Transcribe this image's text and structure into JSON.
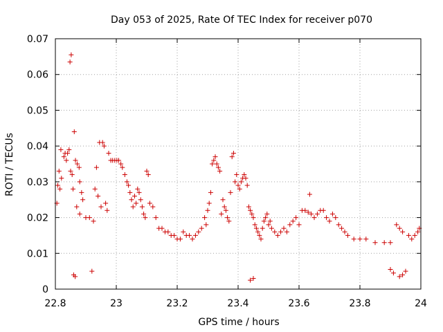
{
  "chart_data": {
    "type": "scatter",
    "title": "Day 053 of 2025, Rate Of TEC Index for receiver p070",
    "xlabel": "GPS time / hours",
    "ylabel": "ROTI / TECUs",
    "xlim": [
      22.8,
      24
    ],
    "ylim": [
      0,
      0.07
    ],
    "x_ticks": [
      22.8,
      23,
      23.2,
      23.4,
      23.6,
      23.8,
      24
    ],
    "x_tick_labels": [
      "22.8",
      "23",
      "23.2",
      "23.4",
      "23.6",
      "23.8",
      "24"
    ],
    "y_ticks": [
      0,
      0.01,
      0.02,
      0.03,
      0.04,
      0.05,
      0.06,
      0.07
    ],
    "y_tick_labels": [
      "0",
      "0.01",
      "0.02",
      "0.03",
      "0.04",
      "0.05",
      "0.06",
      "0.07"
    ],
    "grid": true,
    "marker": "plus",
    "color": "#cc0000",
    "series": [
      {
        "name": "ROTI",
        "points": [
          [
            22.805,
            0.024
          ],
          [
            22.808,
            0.029
          ],
          [
            22.812,
            0.033
          ],
          [
            22.815,
            0.028
          ],
          [
            22.818,
            0.039
          ],
          [
            22.82,
            0.031
          ],
          [
            22.828,
            0.037
          ],
          [
            22.832,
            0.038
          ],
          [
            22.836,
            0.036
          ],
          [
            22.84,
            0.038
          ],
          [
            22.845,
            0.039
          ],
          [
            22.848,
            0.0635
          ],
          [
            22.852,
            0.0655
          ],
          [
            22.85,
            0.033
          ],
          [
            22.855,
            0.032
          ],
          [
            22.858,
            0.028
          ],
          [
            22.862,
            0.044
          ],
          [
            22.866,
            0.036
          ],
          [
            22.872,
            0.035
          ],
          [
            22.878,
            0.034
          ],
          [
            22.88,
            0.03
          ],
          [
            22.886,
            0.027
          ],
          [
            22.89,
            0.025
          ],
          [
            22.88,
            0.021
          ],
          [
            22.87,
            0.023
          ],
          [
            22.9,
            0.02
          ],
          [
            22.912,
            0.02
          ],
          [
            22.925,
            0.019
          ],
          [
            22.93,
            0.028
          ],
          [
            22.935,
            0.034
          ],
          [
            22.94,
            0.026
          ],
          [
            22.945,
            0.041
          ],
          [
            22.95,
            0.023
          ],
          [
            22.955,
            0.041
          ],
          [
            22.96,
            0.04
          ],
          [
            22.965,
            0.024
          ],
          [
            22.97,
            0.022
          ],
          [
            22.975,
            0.038
          ],
          [
            22.982,
            0.036
          ],
          [
            22.988,
            0.036
          ],
          [
            22.995,
            0.036
          ],
          [
            23.002,
            0.036
          ],
          [
            23.008,
            0.036
          ],
          [
            23.015,
            0.035
          ],
          [
            23.02,
            0.034
          ],
          [
            23.028,
            0.032
          ],
          [
            23.035,
            0.03
          ],
          [
            23.04,
            0.029
          ],
          [
            23.045,
            0.027
          ],
          [
            23.05,
            0.025
          ],
          [
            23.055,
            0.023
          ],
          [
            23.06,
            0.026
          ],
          [
            23.065,
            0.024
          ],
          [
            23.07,
            0.028
          ],
          [
            23.075,
            0.027
          ],
          [
            23.08,
            0.025
          ],
          [
            23.085,
            0.023
          ],
          [
            23.09,
            0.021
          ],
          [
            23.095,
            0.02
          ],
          [
            23.1,
            0.033
          ],
          [
            23.105,
            0.032
          ],
          [
            23.11,
            0.024
          ],
          [
            23.12,
            0.023
          ],
          [
            23.13,
            0.02
          ],
          [
            23.14,
            0.017
          ],
          [
            23.15,
            0.017
          ],
          [
            23.16,
            0.016
          ],
          [
            23.17,
            0.016
          ],
          [
            23.18,
            0.015
          ],
          [
            23.19,
            0.015
          ],
          [
            23.2,
            0.014
          ],
          [
            23.21,
            0.014
          ],
          [
            23.22,
            0.016
          ],
          [
            23.23,
            0.015
          ],
          [
            23.24,
            0.015
          ],
          [
            23.25,
            0.014
          ],
          [
            23.26,
            0.015
          ],
          [
            23.27,
            0.016
          ],
          [
            23.28,
            0.017
          ],
          [
            23.29,
            0.02
          ],
          [
            23.295,
            0.018
          ],
          [
            23.3,
            0.022
          ],
          [
            23.305,
            0.024
          ],
          [
            23.31,
            0.027
          ],
          [
            23.315,
            0.035
          ],
          [
            23.32,
            0.036
          ],
          [
            23.325,
            0.037
          ],
          [
            23.33,
            0.035
          ],
          [
            23.335,
            0.034
          ],
          [
            23.34,
            0.033
          ],
          [
            23.345,
            0.021
          ],
          [
            23.35,
            0.025
          ],
          [
            23.355,
            0.023
          ],
          [
            23.36,
            0.022
          ],
          [
            23.365,
            0.02
          ],
          [
            23.37,
            0.019
          ],
          [
            23.375,
            0.027
          ],
          [
            23.38,
            0.037
          ],
          [
            23.385,
            0.038
          ],
          [
            23.39,
            0.03
          ],
          [
            23.395,
            0.032
          ],
          [
            23.4,
            0.029
          ],
          [
            23.405,
            0.028
          ],
          [
            23.41,
            0.03
          ],
          [
            23.415,
            0.031
          ],
          [
            23.42,
            0.032
          ],
          [
            23.425,
            0.031
          ],
          [
            23.43,
            0.029
          ],
          [
            23.435,
            0.023
          ],
          [
            23.44,
            0.022
          ],
          [
            23.445,
            0.021
          ],
          [
            23.45,
            0.02
          ],
          [
            23.455,
            0.018
          ],
          [
            23.46,
            0.017
          ],
          [
            23.465,
            0.016
          ],
          [
            23.47,
            0.015
          ],
          [
            23.475,
            0.014
          ],
          [
            23.48,
            0.017
          ],
          [
            23.485,
            0.019
          ],
          [
            23.49,
            0.02
          ],
          [
            23.495,
            0.021
          ],
          [
            23.5,
            0.018
          ],
          [
            23.505,
            0.019
          ],
          [
            23.51,
            0.017
          ],
          [
            23.52,
            0.016
          ],
          [
            23.53,
            0.015
          ],
          [
            23.54,
            0.016
          ],
          [
            23.55,
            0.017
          ],
          [
            23.56,
            0.016
          ],
          [
            23.57,
            0.018
          ],
          [
            23.58,
            0.019
          ],
          [
            23.59,
            0.02
          ],
          [
            23.6,
            0.018
          ],
          [
            23.61,
            0.022
          ],
          [
            23.62,
            0.022
          ],
          [
            23.63,
            0.0215
          ],
          [
            23.635,
            0.0265
          ],
          [
            23.64,
            0.021
          ],
          [
            23.65,
            0.02
          ],
          [
            23.66,
            0.021
          ],
          [
            23.67,
            0.022
          ],
          [
            23.68,
            0.022
          ],
          [
            23.69,
            0.02
          ],
          [
            23.7,
            0.019
          ],
          [
            23.71,
            0.021
          ],
          [
            23.72,
            0.02
          ],
          [
            23.73,
            0.018
          ],
          [
            23.74,
            0.017
          ],
          [
            23.75,
            0.016
          ],
          [
            23.76,
            0.015
          ],
          [
            23.78,
            0.014
          ],
          [
            23.8,
            0.014
          ],
          [
            23.82,
            0.014
          ],
          [
            23.85,
            0.013
          ],
          [
            23.88,
            0.013
          ],
          [
            23.9,
            0.013
          ],
          [
            23.92,
            0.018
          ],
          [
            23.93,
            0.017
          ],
          [
            23.94,
            0.016
          ],
          [
            23.96,
            0.015
          ],
          [
            23.97,
            0.014
          ],
          [
            23.98,
            0.015
          ],
          [
            23.99,
            0.016
          ],
          [
            23.995,
            0.017
          ],
          [
            22.86,
            0.004
          ],
          [
            22.865,
            0.0035
          ],
          [
            22.92,
            0.005
          ],
          [
            23.44,
            0.0025
          ],
          [
            23.45,
            0.003
          ],
          [
            23.93,
            0.0035
          ],
          [
            23.94,
            0.004
          ],
          [
            23.95,
            0.005
          ],
          [
            23.91,
            0.0045
          ],
          [
            23.9,
            0.0055
          ]
        ]
      }
    ]
  }
}
